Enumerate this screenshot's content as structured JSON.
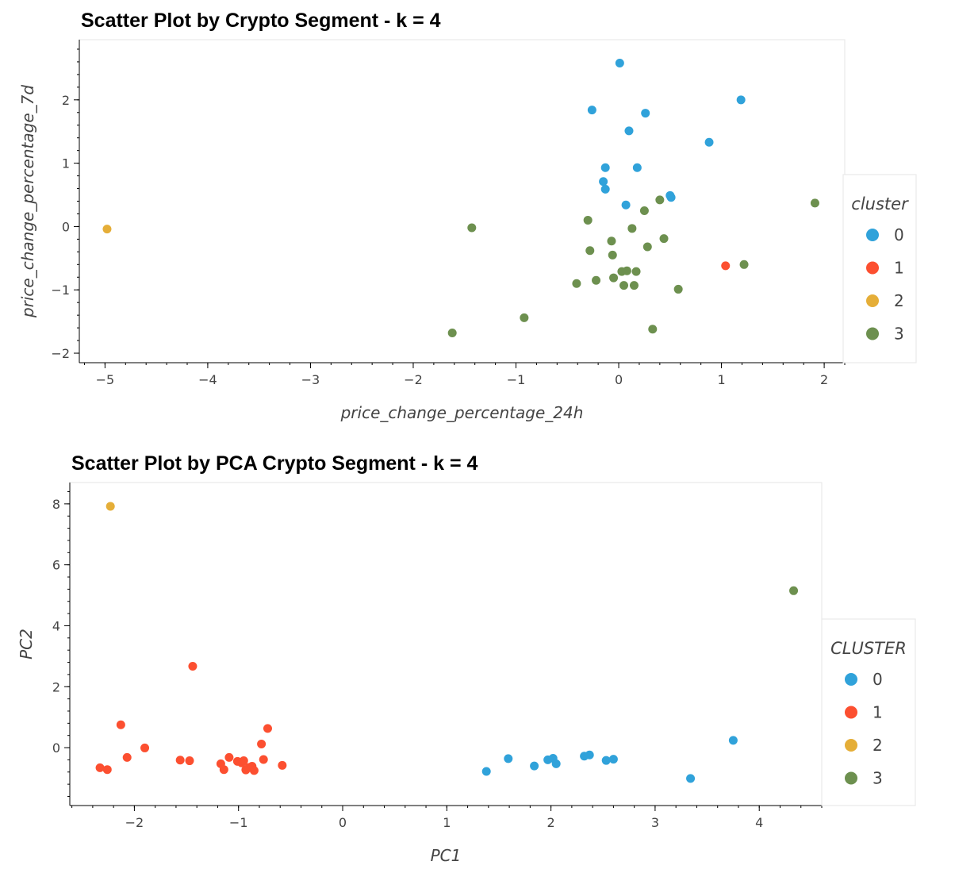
{
  "chart_data": [
    {
      "type": "scatter",
      "title": "Scatter Plot by Crypto Segment - k = 4",
      "xlabel": "price_change_percentage_24h",
      "ylabel": "price_change_percentage_7d",
      "xlim": [
        -5.25,
        2.2
      ],
      "ylim": [
        -2.15,
        2.95
      ],
      "xticks": [
        -5,
        -4,
        -3,
        -2,
        -1,
        0,
        1,
        2
      ],
      "yticks": [
        -2,
        -1,
        0,
        1,
        2
      ],
      "grid": false,
      "legend_title": "cluster",
      "legend_position": "right",
      "series": [
        {
          "name": "0",
          "color": "#30a2da",
          "points": [
            [
              0.01,
              2.58
            ],
            [
              -0.26,
              1.84
            ],
            [
              0.26,
              1.79
            ],
            [
              1.19,
              2.0
            ],
            [
              0.1,
              1.51
            ],
            [
              0.88,
              1.33
            ],
            [
              -0.13,
              0.93
            ],
            [
              0.18,
              0.93
            ],
            [
              -0.15,
              0.71
            ],
            [
              -0.13,
              0.59
            ],
            [
              0.5,
              0.49
            ],
            [
              0.51,
              0.46
            ],
            [
              0.07,
              0.34
            ]
          ]
        },
        {
          "name": "1",
          "color": "#fc4f30",
          "points": [
            [
              1.04,
              -0.62
            ]
          ]
        },
        {
          "name": "2",
          "color": "#e5ae38",
          "points": [
            [
              -4.98,
              -0.04
            ]
          ]
        },
        {
          "name": "3",
          "color": "#6d904f",
          "points": [
            [
              1.91,
              0.37
            ],
            [
              0.4,
              0.42
            ],
            [
              0.25,
              0.25
            ],
            [
              -0.3,
              0.1
            ],
            [
              0.13,
              -0.03
            ],
            [
              -1.43,
              -0.02
            ],
            [
              0.44,
              -0.19
            ],
            [
              -0.07,
              -0.23
            ],
            [
              0.28,
              -0.32
            ],
            [
              -0.28,
              -0.38
            ],
            [
              -0.06,
              -0.45
            ],
            [
              1.22,
              -0.6
            ],
            [
              0.08,
              -0.7
            ],
            [
              0.03,
              -0.71
            ],
            [
              0.17,
              -0.71
            ],
            [
              -0.05,
              -0.81
            ],
            [
              -0.22,
              -0.85
            ],
            [
              -0.41,
              -0.9
            ],
            [
              0.05,
              -0.93
            ],
            [
              0.15,
              -0.93
            ],
            [
              0.58,
              -0.99
            ],
            [
              -0.92,
              -1.44
            ],
            [
              0.33,
              -1.62
            ],
            [
              -1.62,
              -1.68
            ]
          ]
        }
      ]
    },
    {
      "type": "scatter",
      "title": "Scatter Plot by PCA Crypto Segment - k = 4",
      "xlabel": "PC1",
      "ylabel": "PC2",
      "xlim": [
        -2.62,
        4.6
      ],
      "ylim": [
        -1.9,
        8.7
      ],
      "xticks": [
        -2,
        -1,
        0,
        1,
        2,
        3,
        4
      ],
      "yticks": [
        0,
        2,
        4,
        6,
        8
      ],
      "grid": false,
      "legend_title": "CLUSTER",
      "legend_position": "right",
      "series": [
        {
          "name": "0",
          "color": "#30a2da",
          "points": [
            [
              1.38,
              -0.78
            ],
            [
              1.59,
              -0.36
            ],
            [
              1.84,
              -0.6
            ],
            [
              1.97,
              -0.4
            ],
            [
              2.02,
              -0.35
            ],
            [
              2.05,
              -0.53
            ],
            [
              2.32,
              -0.28
            ],
            [
              2.37,
              -0.24
            ],
            [
              2.53,
              -0.42
            ],
            [
              2.6,
              -0.38
            ],
            [
              3.34,
              -1.01
            ],
            [
              3.75,
              0.24
            ]
          ]
        },
        {
          "name": "1",
          "color": "#fc4f30",
          "points": [
            [
              -2.33,
              -0.66
            ],
            [
              -2.26,
              -0.72
            ],
            [
              -2.13,
              0.75
            ],
            [
              -2.07,
              -0.32
            ],
            [
              -1.9,
              -0.01
            ],
            [
              -1.56,
              -0.41
            ],
            [
              -1.47,
              -0.43
            ],
            [
              -1.44,
              2.67
            ],
            [
              -1.17,
              -0.53
            ],
            [
              -1.14,
              -0.72
            ],
            [
              -1.09,
              -0.32
            ],
            [
              -1.01,
              -0.45
            ],
            [
              -0.97,
              -0.5
            ],
            [
              -0.95,
              -0.43
            ],
            [
              -0.93,
              -0.73
            ],
            [
              -0.9,
              -0.65
            ],
            [
              -0.87,
              -0.61
            ],
            [
              -0.85,
              -0.75
            ],
            [
              -0.78,
              0.12
            ],
            [
              -0.76,
              -0.39
            ],
            [
              -0.72,
              0.63
            ],
            [
              -0.58,
              -0.58
            ]
          ]
        },
        {
          "name": "2",
          "color": "#e5ae38",
          "points": [
            [
              -2.23,
              7.92
            ]
          ]
        },
        {
          "name": "3",
          "color": "#6d904f",
          "points": [
            [
              4.33,
              5.15
            ]
          ]
        }
      ]
    }
  ]
}
